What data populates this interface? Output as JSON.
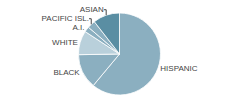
{
  "chart_data": {
    "type": "pie",
    "categories": [
      "HISPANIC",
      "BLACK",
      "WHITE",
      "A.I.",
      "PACIFIC ISL.",
      "ASIAN"
    ],
    "values": [
      58,
      13,
      9,
      2,
      3,
      10
    ],
    "colors": [
      "#8bafc0",
      "#8bafc0",
      "#b9d0db",
      "#8bafc0",
      "#8bafc0",
      "#5a8ea3"
    ]
  }
}
